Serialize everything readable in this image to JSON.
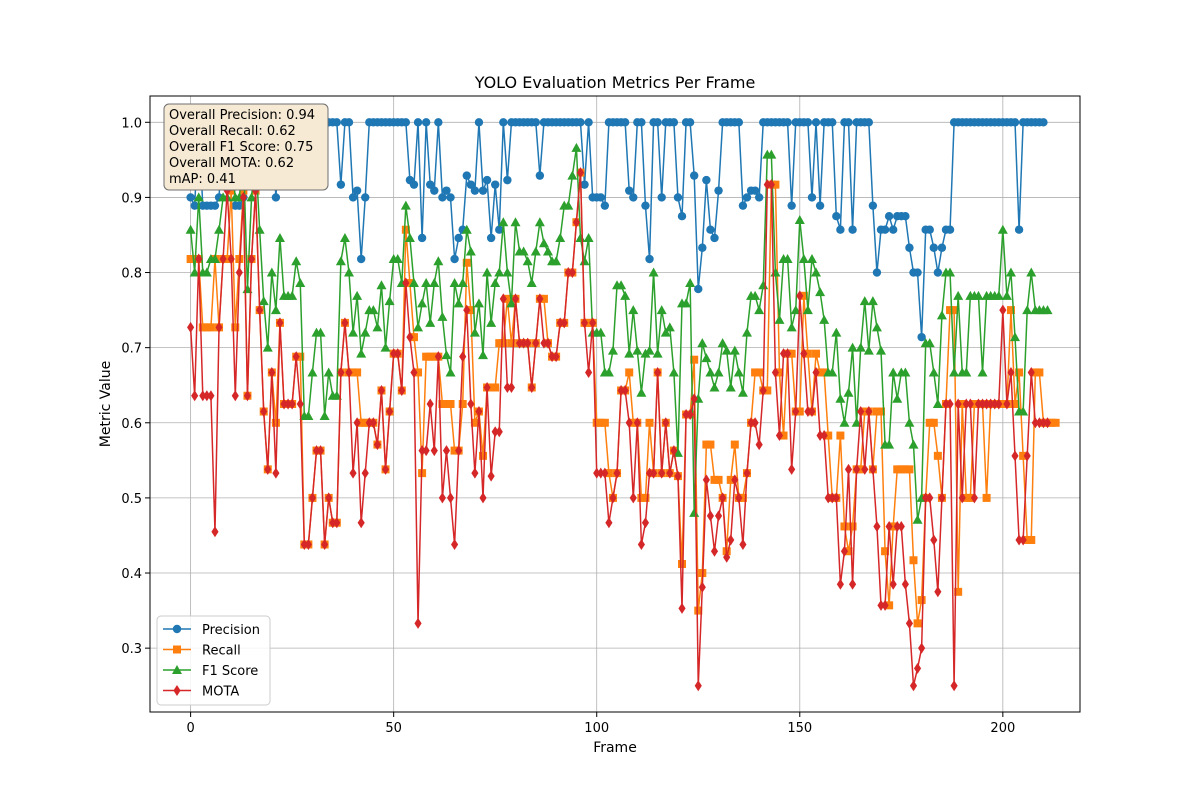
{
  "chart_data": {
    "type": "line",
    "title": "YOLO Evaluation Metrics Per Frame",
    "xlabel": "Frame",
    "ylabel": "Metric Value",
    "xlim": [
      -10,
      219
    ],
    "ylim": [
      0.215,
      1.035
    ],
    "xticks": [
      0,
      50,
      100,
      150,
      200
    ],
    "xtick_labels": [
      "0",
      "50",
      "100",
      "150",
      "200"
    ],
    "yticks": [
      0.3,
      0.4,
      0.5,
      0.6,
      0.7,
      0.8,
      0.9,
      1.0
    ],
    "ytick_labels": [
      "0.3",
      "0.4",
      "0.5",
      "0.6",
      "0.7",
      "0.8",
      "0.9",
      "1.0"
    ],
    "grid": true,
    "legend_position": "lower-left",
    "stats_box": [
      "Overall Precision: 0.94",
      "Overall Recall: 0.62",
      "Overall F1 Score: 0.75",
      "Overall MOTA: 0.62",
      "mAP: 0.41"
    ],
    "series": [
      {
        "name": "Precision",
        "color": "#1f77b4",
        "marker": "circle",
        "values": [
          0.9,
          0.889,
          1.0,
          0.889,
          0.889,
          0.889,
          0.889,
          0.9,
          1.0,
          1.0,
          1.0,
          0.889,
          0.889,
          0.9,
          1.0,
          1.0,
          1.0,
          1.0,
          1.0,
          1.0,
          1.0,
          0.9,
          1.0,
          1.0,
          1.0,
          1.0,
          1.0,
          0.917,
          1.0,
          1.0,
          1.0,
          1.0,
          1.0,
          1.0,
          1.0,
          1.0,
          1.0,
          0.917,
          1.0,
          1.0,
          0.9,
          0.909,
          0.818,
          0.9,
          1.0,
          1.0,
          1.0,
          1.0,
          1.0,
          1.0,
          1.0,
          1.0,
          1.0,
          1.0,
          0.923,
          0.917,
          1.0,
          0.846,
          1.0,
          0.917,
          0.909,
          1.0,
          0.9,
          0.909,
          0.9,
          0.818,
          0.846,
          0.857,
          0.929,
          0.917,
          0.909,
          1.0,
          0.909,
          0.923,
          0.846,
          0.917,
          0.857,
          1.0,
          0.923,
          1.0,
          1.0,
          1.0,
          1.0,
          1.0,
          1.0,
          1.0,
          0.929,
          1.0,
          1.0,
          1.0,
          1.0,
          1.0,
          1.0,
          1.0,
          1.0,
          1.0,
          1.0,
          0.917,
          1.0,
          0.9,
          0.9,
          0.9,
          0.889,
          1.0,
          1.0,
          1.0,
          1.0,
          1.0,
          0.909,
          0.9,
          1.0,
          1.0,
          0.889,
          0.818,
          1.0,
          1.0,
          0.9,
          1.0,
          1.0,
          1.0,
          0.9,
          0.875,
          1.0,
          1.0,
          0.929,
          0.778,
          0.833,
          0.923,
          0.857,
          0.846,
          0.909,
          1.0,
          1.0,
          1.0,
          1.0,
          1.0,
          0.889,
          0.9,
          0.909,
          0.909,
          0.9,
          1.0,
          1.0,
          1.0,
          1.0,
          1.0,
          1.0,
          1.0,
          0.889,
          1.0,
          1.0,
          1.0,
          1.0,
          0.9,
          1.0,
          0.889,
          1.0,
          1.0,
          1.0,
          0.875,
          0.857,
          1.0,
          1.0,
          0.857,
          1.0,
          1.0,
          1.0,
          1.0,
          0.889,
          0.8,
          0.857,
          0.857,
          0.875,
          0.857,
          0.875,
          0.875,
          0.875,
          0.833,
          0.8,
          0.8,
          0.714,
          0.857,
          0.857,
          0.833,
          0.8,
          0.833,
          0.857,
          0.857,
          1.0,
          1.0,
          1.0,
          1.0,
          1.0,
          1.0,
          1.0,
          1.0,
          1.0,
          1.0,
          1.0,
          1.0,
          1.0,
          1.0,
          1.0,
          1.0,
          0.857,
          1.0,
          1.0,
          1.0,
          1.0,
          1.0,
          1.0
        ]
      },
      {
        "name": "Recall",
        "color": "#ff7f0e",
        "marker": "square",
        "values": [
          0.818,
          0.818,
          0.818,
          0.727,
          0.727,
          0.727,
          0.818,
          0.727,
          0.818,
          0.818,
          0.909,
          0.727,
          0.818,
          0.909,
          0.636,
          0.818,
          0.909,
          0.75,
          0.615,
          0.538,
          0.667,
          0.6,
          0.733,
          0.625,
          0.625,
          0.625,
          0.688,
          0.688,
          0.438,
          0.438,
          0.5,
          0.563,
          0.563,
          0.438,
          0.5,
          0.467,
          0.467,
          0.667,
          0.733,
          0.667,
          0.667,
          0.667,
          0.6,
          0.6,
          0.6,
          0.6,
          0.571,
          0.643,
          0.538,
          0.615,
          0.692,
          0.692,
          0.643,
          0.857,
          0.786,
          0.714,
          0.667,
          0.533,
          0.688,
          0.688,
          0.688,
          0.688,
          0.625,
          0.625,
          0.625,
          0.563,
          0.563,
          0.625,
          0.813,
          0.75,
          0.6,
          0.615,
          0.556,
          0.647,
          0.647,
          0.647,
          0.706,
          0.706,
          0.765,
          0.706,
          0.765,
          0.706,
          0.706,
          0.706,
          0.647,
          0.706,
          0.765,
          0.765,
          0.706,
          0.688,
          0.688,
          0.733,
          0.733,
          0.8,
          0.8,
          0.867,
          0.933,
          0.733,
          0.733,
          0.733,
          0.6,
          0.6,
          0.6,
          0.533,
          0.5,
          0.533,
          0.643,
          0.643,
          0.667,
          0.6,
          0.6,
          0.5,
          0.5,
          0.6,
          0.533,
          0.667,
          0.533,
          0.6,
          0.533,
          0.563,
          0.529,
          0.412,
          0.611,
          0.611,
          0.684,
          0.35,
          0.4,
          0.571,
          0.571,
          0.524,
          0.524,
          0.5,
          0.429,
          0.524,
          0.571,
          0.5,
          0.5,
          0.533,
          0.6,
          0.667,
          0.667,
          0.643,
          0.643,
          0.917,
          0.917,
          0.667,
          0.583,
          0.692,
          0.692,
          0.615,
          0.615,
          0.769,
          0.692,
          0.615,
          0.692,
          0.667,
          0.667,
          0.583,
          0.5,
          0.5,
          0.583,
          0.462,
          0.429,
          0.462,
          0.538,
          0.538,
          0.615,
          0.615,
          0.538,
          0.615,
          0.615,
          0.429,
          0.357,
          0.462,
          0.538,
          0.538,
          0.538,
          0.538,
          0.417,
          0.333,
          0.364,
          0.5,
          0.6,
          0.6,
          0.556,
          0.5,
          0.625,
          0.75,
          0.75,
          0.375,
          0.625,
          0.5,
          0.5,
          0.625,
          0.625,
          0.625,
          0.5,
          0.625,
          0.625,
          0.625,
          0.625,
          0.625,
          0.75,
          0.625,
          0.667,
          0.556,
          0.444,
          0.444,
          0.667,
          0.667,
          0.6,
          0.6,
          0.6,
          0.6
        ]
      },
      {
        "name": "F1 Score",
        "color": "#2ca02c",
        "marker": "triangle",
        "values": [
          0.857,
          0.8,
          0.9,
          0.8,
          0.8,
          0.818,
          0.818,
          0.857,
          0.9,
          0.9,
          0.952,
          0.9,
          0.9,
          0.957,
          0.778,
          0.9,
          0.957,
          0.857,
          0.762,
          0.7,
          0.8,
          0.75,
          0.846,
          0.769,
          0.769,
          0.769,
          0.815,
          0.786,
          0.609,
          0.609,
          0.667,
          0.72,
          0.72,
          0.609,
          0.667,
          0.636,
          0.636,
          0.815,
          0.846,
          0.8,
          0.72,
          0.769,
          0.692,
          0.72,
          0.75,
          0.75,
          0.727,
          0.783,
          0.7,
          0.762,
          0.818,
          0.818,
          0.786,
          0.889,
          0.846,
          0.786,
          0.727,
          0.759,
          0.786,
          0.733,
          0.786,
          0.815,
          0.741,
          0.69,
          0.667,
          0.786,
          0.759,
          0.786,
          0.857,
          0.828,
          0.72,
          0.759,
          0.69,
          0.8,
          0.733,
          0.786,
          0.8,
          0.867,
          0.8,
          0.759,
          0.867,
          0.828,
          0.828,
          0.815,
          0.786,
          0.828,
          0.867,
          0.839,
          0.828,
          0.815,
          0.815,
          0.846,
          0.889,
          0.889,
          0.929,
          0.966,
          0.846,
          0.815,
          0.846,
          0.72,
          0.72,
          0.72,
          0.667,
          0.667,
          0.696,
          0.783,
          0.783,
          0.769,
          0.692,
          0.75,
          0.696,
          0.64,
          0.692,
          0.696,
          0.8,
          0.692,
          0.75,
          0.72,
          0.727,
          0.667,
          0.56,
          0.759,
          0.759,
          0.786,
          0.48,
          0.632,
          0.706,
          0.686,
          0.667,
          0.647,
          0.667,
          0.706,
          0.696,
          0.647,
          0.696,
          0.667,
          0.64,
          0.72,
          0.769,
          0.769,
          0.75,
          0.783,
          0.957,
          0.957,
          0.8,
          0.737,
          0.818,
          0.818,
          0.727,
          0.75,
          0.87,
          0.818,
          0.75,
          0.818,
          0.8,
          0.774,
          0.737,
          0.667,
          0.667,
          0.72,
          0.632,
          0.6,
          0.64,
          0.7,
          0.6,
          0.7,
          0.762,
          0.696,
          0.762,
          0.727,
          0.696,
          0.571,
          0.571,
          0.667,
          0.632,
          0.667,
          0.667,
          0.6,
          0.571,
          0.471,
          0.5,
          0.706,
          0.706,
          0.667,
          0.625,
          0.743,
          0.8,
          0.8,
          0.667,
          0.769,
          0.667,
          0.667,
          0.769,
          0.769,
          0.769,
          0.667,
          0.769,
          0.769,
          0.769,
          0.769,
          0.857,
          0.769,
          0.8,
          0.714,
          0.615,
          0.615,
          0.75,
          0.8,
          0.75,
          0.75,
          0.75,
          0.75
        ]
      },
      {
        "name": "MOTA",
        "color": "#d62728",
        "marker": "diamond",
        "values": [
          0.727,
          0.636,
          0.818,
          0.636,
          0.636,
          0.636,
          0.455,
          0.727,
          0.818,
          0.909,
          0.818,
          0.636,
          0.8,
          0.9,
          0.636,
          0.818,
          0.909,
          0.75,
          0.615,
          0.538,
          0.667,
          0.533,
          0.733,
          0.625,
          0.625,
          0.625,
          0.688,
          0.625,
          0.438,
          0.438,
          0.5,
          0.563,
          0.563,
          0.438,
          0.5,
          0.467,
          0.467,
          0.667,
          0.733,
          0.667,
          0.533,
          0.6,
          0.467,
          0.533,
          0.6,
          0.6,
          0.571,
          0.643,
          0.538,
          0.615,
          0.692,
          0.692,
          0.643,
          0.786,
          0.714,
          0.667,
          0.333,
          0.563,
          0.563,
          0.625,
          0.563,
          0.688,
          0.5,
          0.563,
          0.5,
          0.438,
          0.563,
          0.688,
          0.75,
          0.625,
          0.533,
          0.615,
          0.5,
          0.647,
          0.529,
          0.588,
          0.588,
          0.765,
          0.647,
          0.647,
          0.765,
          0.706,
          0.706,
          0.706,
          0.647,
          0.706,
          0.765,
          0.706,
          0.706,
          0.688,
          0.688,
          0.733,
          0.733,
          0.8,
          0.8,
          0.867,
          0.933,
          0.733,
          0.667,
          0.733,
          0.533,
          0.533,
          0.533,
          0.467,
          0.5,
          0.533,
          0.643,
          0.643,
          0.6,
          0.5,
          0.6,
          0.438,
          0.467,
          0.533,
          0.533,
          0.667,
          0.533,
          0.6,
          0.533,
          0.563,
          0.529,
          0.353,
          0.611,
          0.611,
          0.632,
          0.25,
          0.381,
          0.524,
          0.476,
          0.429,
          0.476,
          0.5,
          0.421,
          0.444,
          0.524,
          0.5,
          0.438,
          0.533,
          0.6,
          0.6,
          0.571,
          0.643,
          0.917,
          0.917,
          0.667,
          0.583,
          0.692,
          0.692,
          0.538,
          0.615,
          0.769,
          0.692,
          0.615,
          0.615,
          0.667,
          0.583,
          0.583,
          0.5,
          0.5,
          0.5,
          0.385,
          0.429,
          0.538,
          0.385,
          0.538,
          0.615,
          0.538,
          0.615,
          0.538,
          0.462,
          0.357,
          0.357,
          0.462,
          0.385,
          0.462,
          0.462,
          0.385,
          0.333,
          0.25,
          0.273,
          0.3,
          0.5,
          0.5,
          0.444,
          0.375,
          0.5,
          0.625,
          0.625,
          0.25,
          0.625,
          0.5,
          0.625,
          0.625,
          0.5,
          0.625,
          0.625,
          0.625,
          0.625,
          0.625,
          0.625,
          0.75,
          0.625,
          0.667,
          0.556,
          0.444,
          0.444,
          0.556,
          0.667,
          0.6,
          0.6,
          0.6,
          0.6
        ]
      }
    ]
  }
}
